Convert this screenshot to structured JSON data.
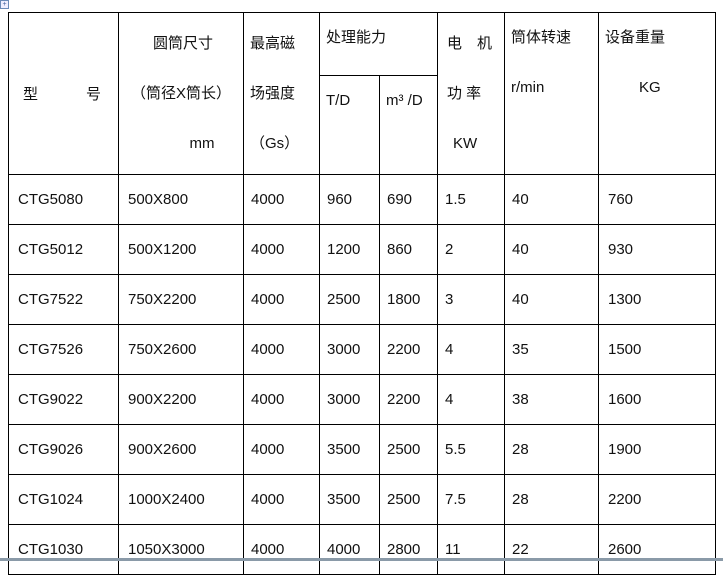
{
  "header": {
    "model": [
      "型",
      "号"
    ],
    "size": [
      "圆筒尺寸",
      "（筒径X筒长）",
      "mm"
    ],
    "field": [
      "最高磁",
      "场强度",
      "（Gs）"
    ],
    "capacity": "处理能力",
    "cap_td": "T/D",
    "cap_m3": "m³ /D",
    "motor": [
      "电　机",
      "功 率",
      "KW"
    ],
    "speed": [
      "筒体转速",
      "r/min"
    ],
    "weight": [
      "设备重量",
      "KG"
    ]
  },
  "rows": [
    [
      "CTG5080",
      "500X800",
      "4000",
      "960",
      "690",
      "1.5",
      "40",
      "760"
    ],
    [
      "CTG5012",
      "500X1200",
      "4000",
      "1200",
      "860",
      "2",
      "40",
      "930"
    ],
    [
      "CTG7522",
      "750X2200",
      "4000",
      "2500",
      "1800",
      "3",
      "40",
      "1300"
    ],
    [
      "CTG7526",
      "750X2600",
      "4000",
      "3000",
      "2200",
      "4",
      "35",
      "1500"
    ],
    [
      "CTG9022",
      "900X2200",
      "4000",
      "3000",
      "2200",
      "4",
      "38",
      "1600"
    ],
    [
      "CTG9026",
      "900X2600",
      "4000",
      "3500",
      "2500",
      "5.5",
      "28",
      "1900"
    ],
    [
      "CTG1024",
      "1000X2400",
      "4000",
      "3500",
      "2500",
      "7.5",
      "28",
      "2200"
    ],
    [
      "CTG1030",
      "1050X3000",
      "4000",
      "4000",
      "2800",
      "11",
      "22",
      "2600"
    ]
  ]
}
